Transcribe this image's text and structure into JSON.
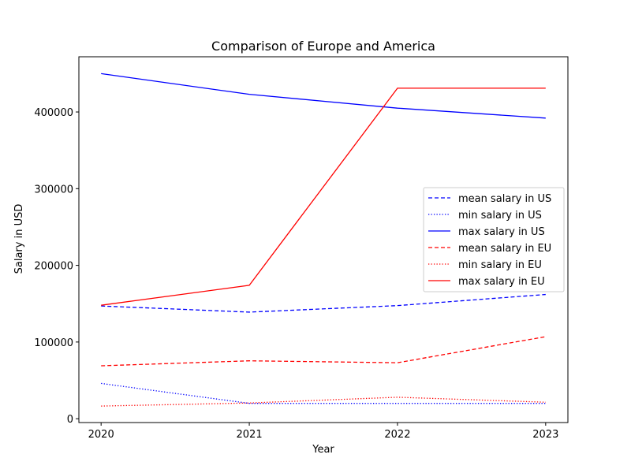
{
  "chart_data": {
    "type": "line",
    "title": "Comparison of Europe and America",
    "xlabel": "Year",
    "ylabel": "Salary in USD",
    "categories": [
      "2020",
      "2021",
      "2022",
      "2023"
    ],
    "x": [
      2020,
      2021,
      2022,
      2023
    ],
    "xlim": [
      2019.85,
      2023.15
    ],
    "ylim": [
      -5000,
      472000
    ],
    "yticks": [
      0,
      100000,
      200000,
      300000,
      400000
    ],
    "ytick_labels": [
      "0",
      "100000",
      "200000",
      "300000",
      "400000"
    ],
    "grid": false,
    "legend_position": "center-right",
    "series": [
      {
        "name": "mean salary in US",
        "values": [
          147000,
          139000,
          147500,
          162000
        ],
        "color": "#0000ff",
        "style": "dashed"
      },
      {
        "name": "min salary in US",
        "values": [
          46000,
          20000,
          20000,
          20000
        ],
        "color": "#0000ff",
        "style": "dotted"
      },
      {
        "name": "max salary in US",
        "values": [
          450000,
          423000,
          405000,
          392000
        ],
        "color": "#0000ff",
        "style": "solid"
      },
      {
        "name": "mean salary in EU",
        "values": [
          69000,
          75500,
          73000,
          107000
        ],
        "color": "#ff0000",
        "style": "dashed"
      },
      {
        "name": "min salary in EU",
        "values": [
          16500,
          20500,
          28000,
          21500
        ],
        "color": "#ff0000",
        "style": "dotted"
      },
      {
        "name": "max salary in EU",
        "values": [
          148000,
          174000,
          431000,
          431000
        ],
        "color": "#ff0000",
        "style": "solid"
      }
    ]
  }
}
